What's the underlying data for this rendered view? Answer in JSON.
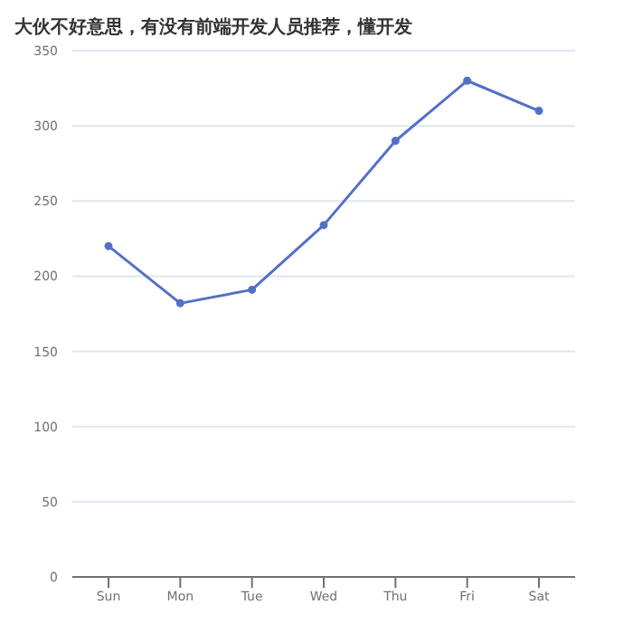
{
  "chart_data": {
    "type": "line",
    "title": "大伙不好意思，有没有前端开发人员推荐，懂开发",
    "categories": [
      "Sun",
      "Mon",
      "Tue",
      "Wed",
      "Thu",
      "Fri",
      "Sat"
    ],
    "series": [
      {
        "color": "#5470c6",
        "values": [
          220,
          182,
          191,
          234,
          290,
          330,
          310
        ]
      }
    ],
    "ylim": [
      0,
      350
    ],
    "yticks": [
      0,
      50,
      100,
      150,
      200,
      250,
      300,
      350
    ],
    "grid": "y",
    "marker": "circle"
  }
}
